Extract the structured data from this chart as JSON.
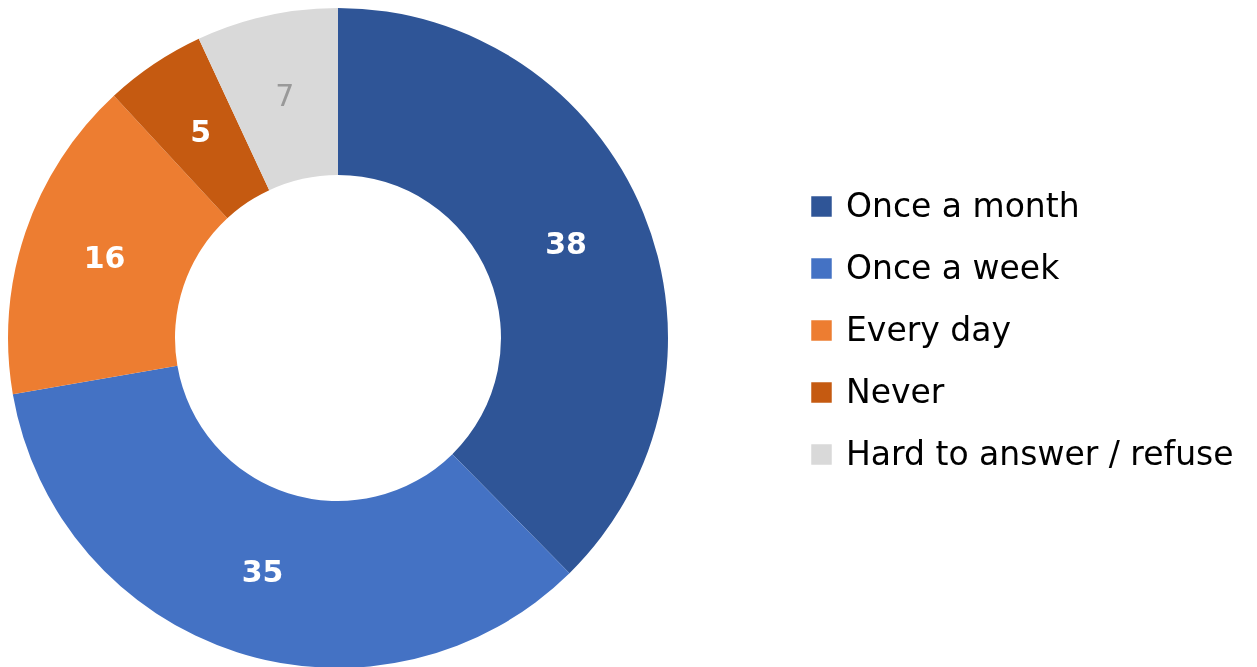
{
  "chart_data": {
    "type": "donut",
    "categories": [
      "Once a month",
      "Once a week",
      "Every day",
      "Never",
      "Hard to answer / refuse"
    ],
    "values": [
      38,
      35,
      16,
      5,
      7
    ],
    "colors": [
      "#2f5597",
      "#4472c4",
      "#ed7d31",
      "#c55a11",
      "#d9d9d9"
    ],
    "data_labels": true,
    "legend": "right"
  }
}
